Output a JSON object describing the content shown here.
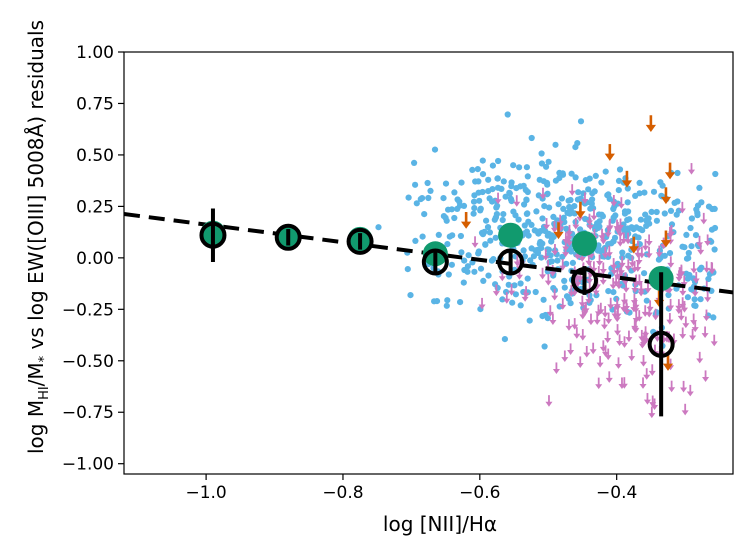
{
  "chart_data": {
    "type": "scatter",
    "title": "",
    "xlabel": "log [NII]/Hα",
    "ylabel": "log M_HI/M_* vs log EW([OIII] 5008Å) residuals",
    "ylabel_parts": {
      "pre": "log M",
      "sub1": "HI",
      "mid": "/M",
      "sub2": "*",
      "post": " vs log EW([OIII] 5008Å) residuals"
    },
    "xlim": [
      -1.12,
      -0.23
    ],
    "ylim": [
      -1.05,
      1.0
    ],
    "xticks": [
      -1.0,
      -0.8,
      -0.6,
      -0.4
    ],
    "xtick_labels": [
      "−1.0",
      "−0.8",
      "−0.6",
      "−0.4"
    ],
    "yticks": [
      1.0,
      0.75,
      0.5,
      0.25,
      0.0,
      -0.25,
      -0.5,
      -0.75,
      -1.0
    ],
    "ytick_labels": [
      "1.00",
      "0.75",
      "0.50",
      "0.25",
      "0.00",
      "−0.25",
      "−0.50",
      "−0.75",
      "−1.00"
    ],
    "grid": false,
    "colors": {
      "detections": "#5ab4e5",
      "upper_limits": "#cc79c0",
      "upper_limits_strong": "#d55e00",
      "binned_detections": "#119a6e",
      "binned_all": "#000000",
      "fit_line": "#000000"
    },
    "fit_line": {
      "x": [
        -1.12,
        -0.23
      ],
      "y": [
        0.213,
        -0.168
      ],
      "style": "dashed"
    },
    "binned_detections": {
      "x": [
        -0.99,
        -0.88,
        -0.775,
        -0.665,
        -0.555,
        -0.447,
        -0.335
      ],
      "y": [
        0.12,
        0.1,
        0.09,
        0.02,
        0.11,
        0.07,
        -0.1
      ]
    },
    "binned_all": {
      "x": [
        -0.99,
        -0.88,
        -0.775,
        -0.665,
        -0.555,
        -0.447,
        -0.335
      ],
      "y": [
        0.11,
        0.1,
        0.08,
        -0.02,
        -0.02,
        -0.11,
        -0.42
      ],
      "yerr": [
        0.13,
        0.04,
        0.04,
        0.05,
        0.06,
        0.07,
        0.35
      ]
    },
    "upper_limits_strong": {
      "x": [
        -0.62,
        -0.485,
        -0.41,
        -0.385,
        -0.453,
        -0.375,
        -0.35,
        -0.322,
        -0.328,
        -0.328,
        -0.338,
        -0.325
      ],
      "y": [
        0.18,
        0.13,
        0.51,
        0.38,
        0.23,
        0.06,
        0.65,
        0.42,
        0.3,
        0.09,
        -0.2,
        -0.51
      ]
    }
  }
}
